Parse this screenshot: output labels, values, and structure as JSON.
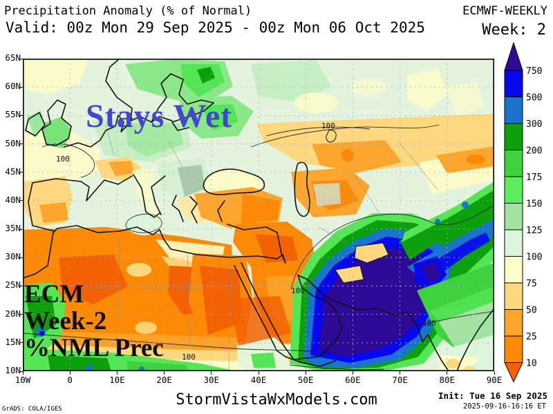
{
  "header": {
    "title": "Precipitation Anomaly (% of Normal)",
    "model": "ECMWF-WEEKLY",
    "valid_range": "Valid: 00z Mon 29 Sep 2025 - 00z Mon 06 Oct 2025",
    "week": "Week: 2"
  },
  "map": {
    "lat_labels": [
      "65N",
      "60N",
      "55N",
      "50N",
      "45N",
      "40N",
      "35N",
      "30N",
      "25N",
      "20N",
      "15N",
      "10N"
    ],
    "lon_labels": [
      "10W",
      "0",
      "10E",
      "20E",
      "30E",
      "40E",
      "50E",
      "60E",
      "70E",
      "80E",
      "90E"
    ],
    "contour_label": "100",
    "overlays": {
      "stays_wet": "Stays Wet",
      "ecm_line1": "ECM",
      "ecm_line2": "Week-2",
      "ecm_line3": "%NML Prec"
    }
  },
  "colorbar": {
    "levels": [
      "750",
      "500",
      "300",
      "200",
      "175",
      "150",
      "125",
      "100",
      "75",
      "50",
      "25",
      "10"
    ],
    "colors": [
      "#0808f0",
      "#1874cd",
      "#0da00d",
      "#3ed23e",
      "#5cee5c",
      "#a2e3a2",
      "#dcf5dc",
      "#fdfdc9",
      "#fed87e",
      "#fda62e",
      "#fc8a06"
    ],
    "above_color": "#2e0a96",
    "below_color": "#f26202"
  },
  "footer": {
    "credit": "GrADS: COLA/IGES",
    "site": "StormVistaWxModels.com",
    "init": "Init: Tue 16 Sep 2025",
    "init_time": "2025-09-16-16:16 ET"
  },
  "chart_data": {
    "type": "heatmap",
    "title": "Precipitation Anomaly (% of Normal)",
    "model": "ECMWF-WEEKLY",
    "week": 2,
    "valid_from": "00z Mon 29 Sep 2025",
    "valid_to": "00z Mon 06 Oct 2025",
    "init": "Tue 16 Sep 2025",
    "lon_range": [
      "10W",
      "90E"
    ],
    "lat_range": [
      "10N",
      "65N"
    ],
    "scale_levels_percent_of_normal": [
      10,
      25,
      50,
      75,
      100,
      125,
      150,
      175,
      200,
      300,
      500,
      750
    ],
    "legend_position": "right",
    "annotations": [
      "Stays Wet",
      "ECM Week-2 %NML Prec",
      "100 contour"
    ]
  }
}
